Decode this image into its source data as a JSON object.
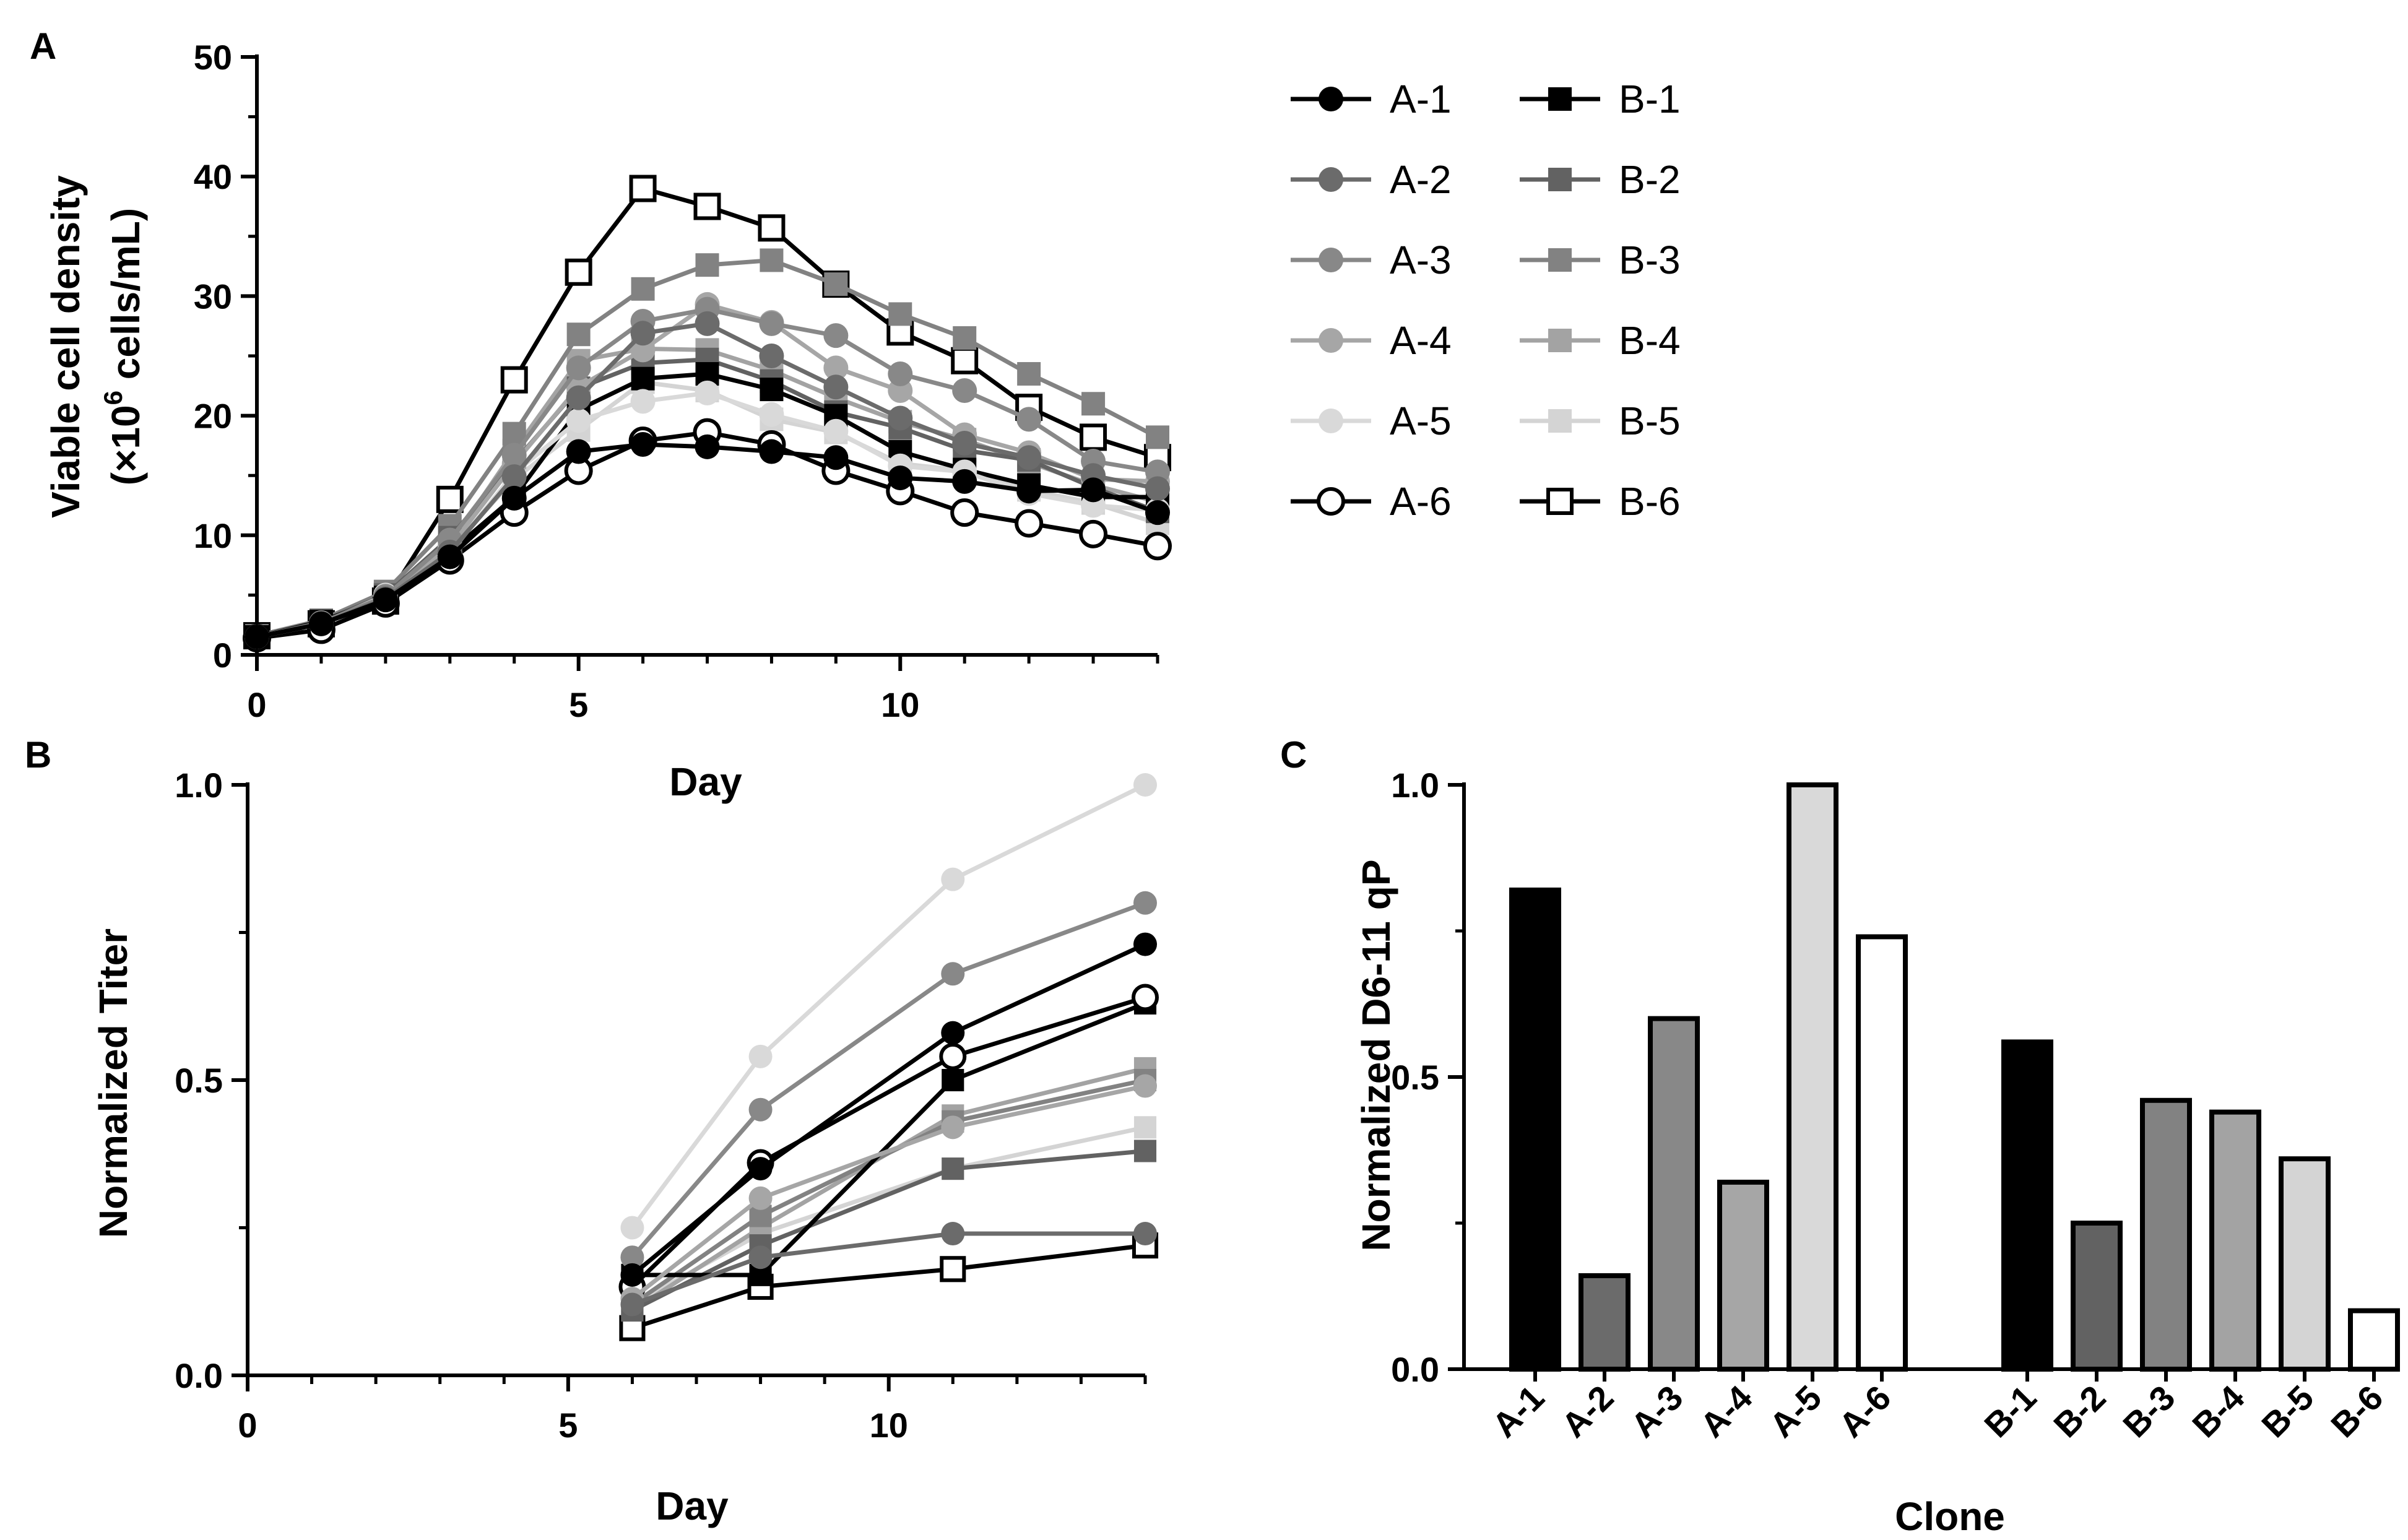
{
  "colors": {
    "A-1": "#000000",
    "A-2": "#6b6b6b",
    "A-3": "#888888",
    "A-4": "#a6a6a6",
    "A-5": "#d9d9d9",
    "A-6": "#ffffff",
    "B-1": "#000000",
    "B-2": "#626262",
    "B-3": "#828282",
    "B-4": "#a3a3a3",
    "B-5": "#d4d4d4",
    "B-6": "#ffffff"
  },
  "chart_data": [
    {
      "panel": "A",
      "type": "line",
      "xlabel": "Day",
      "ylabel_line1": "Viable cell density",
      "ylabel_line2_prefix": "(×10",
      "ylabel_line2_sup": "6",
      "ylabel_line2_suffix": " cells/mL)",
      "xlim": [
        0,
        14
      ],
      "ylim": [
        0,
        50
      ],
      "xticks": [
        0,
        5,
        10
      ],
      "yticks": [
        0,
        10,
        20,
        30,
        40,
        50
      ],
      "legend_position": "right",
      "x": [
        0,
        1,
        2,
        3,
        4,
        5,
        6,
        7,
        8,
        9,
        10,
        11,
        12,
        13,
        14
      ],
      "series": [
        {
          "name": "A-1",
          "marker": "circle",
          "values": [
            1.5,
            2.6,
            4.6,
            8.2,
            13.1,
            17.0,
            17.6,
            17.4,
            17.0,
            16.5,
            14.8,
            14.5,
            13.7,
            13.8,
            11.9
          ]
        },
        {
          "name": "A-2",
          "marker": "circle",
          "values": [
            1.5,
            2.6,
            4.7,
            8.6,
            14.9,
            21.5,
            26.9,
            27.7,
            25.0,
            22.4,
            19.8,
            17.7,
            16.5,
            15.0,
            13.9
          ]
        },
        {
          "name": "A-3",
          "marker": "circle",
          "values": [
            1.5,
            2.7,
            4.9,
            9.6,
            16.7,
            24.0,
            27.9,
            28.9,
            27.7,
            26.7,
            23.5,
            22.1,
            19.7,
            16.2,
            15.3
          ]
        },
        {
          "name": "A-4",
          "marker": "circle",
          "values": [
            1.5,
            2.6,
            4.8,
            9.0,
            16.0,
            22.4,
            25.5,
            29.3,
            27.8,
            24.0,
            22.1,
            18.4,
            16.9,
            14.7,
            14.5
          ]
        },
        {
          "name": "A-5",
          "marker": "circle",
          "values": [
            1.5,
            2.6,
            5.0,
            8.5,
            15.2,
            19.6,
            21.2,
            21.9,
            20.1,
            18.7,
            15.8,
            15.3,
            13.5,
            12.5,
            12.1
          ]
        },
        {
          "name": "A-6",
          "marker": "circle",
          "values": [
            1.4,
            2.1,
            4.3,
            7.9,
            11.9,
            15.4,
            17.9,
            18.6,
            17.6,
            15.4,
            13.7,
            11.9,
            11.0,
            10.1,
            9.1
          ]
        },
        {
          "name": "B-1",
          "marker": "square",
          "values": [
            1.5,
            2.8,
            4.8,
            8.6,
            13.2,
            20.5,
            23.1,
            23.5,
            22.2,
            20.0,
            17.0,
            15.5,
            14.2,
            13.2,
            13.2
          ]
        },
        {
          "name": "B-2",
          "marker": "square",
          "values": [
            1.5,
            2.8,
            5.0,
            9.8,
            16.1,
            22.3,
            24.4,
            24.7,
            22.9,
            20.3,
            19.0,
            17.1,
            16.3,
            14.0,
            12.0
          ]
        },
        {
          "name": "B-3",
          "marker": "square",
          "values": [
            1.6,
            2.9,
            5.3,
            10.8,
            18.5,
            26.8,
            30.6,
            32.6,
            33.0,
            31.0,
            28.5,
            26.5,
            23.5,
            21.0,
            18.2
          ]
        },
        {
          "name": "B-4",
          "marker": "square",
          "values": [
            1.5,
            2.8,
            5.1,
            9.2,
            17.1,
            24.6,
            25.6,
            25.5,
            23.8,
            21.5,
            19.5,
            18.0,
            16.1,
            14.2,
            12.8
          ]
        },
        {
          "name": "B-5",
          "marker": "square",
          "values": [
            1.5,
            2.7,
            5.1,
            8.8,
            14.7,
            18.8,
            22.8,
            22.1,
            19.7,
            18.6,
            16.0,
            15.4,
            13.8,
            12.7,
            11.0
          ]
        },
        {
          "name": "B-6",
          "marker": "square",
          "values": [
            1.6,
            2.6,
            4.5,
            13.0,
            23.0,
            32.0,
            39.0,
            37.5,
            35.7,
            31.0,
            27.0,
            24.6,
            20.7,
            18.2,
            16.5
          ]
        }
      ]
    },
    {
      "panel": "B",
      "type": "line",
      "xlabel": "Day",
      "ylabel": "Normalized Titer",
      "xlim": [
        0,
        14
      ],
      "ylim": [
        0,
        1
      ],
      "xticks": [
        0,
        5,
        10
      ],
      "yticks": [
        0.0,
        0.5,
        1.0
      ],
      "ytick_labels": [
        "0.0",
        "0.5",
        "1.0"
      ],
      "x": [
        6,
        8,
        11,
        14
      ],
      "series": [
        {
          "name": "A-1",
          "marker": "circle",
          "values": [
            0.17,
            0.35,
            0.58,
            0.73
          ]
        },
        {
          "name": "A-2",
          "marker": "circle",
          "values": [
            0.12,
            0.2,
            0.24,
            0.24
          ]
        },
        {
          "name": "A-3",
          "marker": "circle",
          "values": [
            0.2,
            0.45,
            0.68,
            0.8
          ]
        },
        {
          "name": "A-4",
          "marker": "circle",
          "values": [
            0.13,
            0.3,
            0.42,
            0.49
          ]
        },
        {
          "name": "A-5",
          "marker": "circle",
          "values": [
            0.25,
            0.54,
            0.84,
            1.0
          ]
        },
        {
          "name": "A-6",
          "marker": "circle",
          "values": [
            0.15,
            0.36,
            0.54,
            0.64
          ]
        },
        {
          "name": "B-1",
          "marker": "square",
          "values": [
            0.17,
            0.17,
            0.5,
            0.63
          ]
        },
        {
          "name": "B-2",
          "marker": "square",
          "values": [
            0.11,
            0.22,
            0.35,
            0.38
          ]
        },
        {
          "name": "B-3",
          "marker": "square",
          "values": [
            0.12,
            0.27,
            0.43,
            0.5
          ]
        },
        {
          "name": "B-4",
          "marker": "square",
          "values": [
            0.11,
            0.25,
            0.44,
            0.52
          ]
        },
        {
          "name": "B-5",
          "marker": "square",
          "values": [
            0.12,
            0.24,
            0.35,
            0.42
          ]
        },
        {
          "name": "B-6",
          "marker": "square",
          "values": [
            0.08,
            0.15,
            0.18,
            0.22
          ]
        }
      ]
    },
    {
      "panel": "C",
      "type": "bar",
      "xlabel": "Clone",
      "ylabel": "Normalized D6-11 qP",
      "ylim": [
        0,
        1
      ],
      "yticks": [
        0.0,
        0.5,
        1.0
      ],
      "ytick_labels": [
        "0.0",
        "0.5",
        "1.0"
      ],
      "categories": [
        "A-1",
        "A-2",
        "A-3",
        "A-4",
        "A-5",
        "A-6",
        "B-1",
        "B-2",
        "B-3",
        "B-4",
        "B-5",
        "B-6"
      ],
      "values": [
        0.82,
        0.16,
        0.6,
        0.32,
        1.0,
        0.74,
        0.56,
        0.25,
        0.46,
        0.44,
        0.36,
        0.1
      ]
    }
  ],
  "panel_labels": {
    "a": "A",
    "b": "B",
    "c": "C"
  }
}
